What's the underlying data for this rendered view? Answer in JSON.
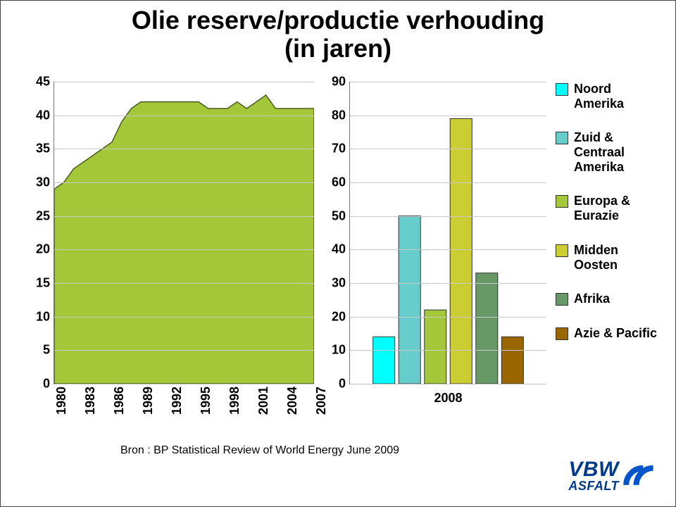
{
  "title_line1": "Olie reserve/productie verhouding",
  "title_line2": "(in jaren)",
  "source_text": "Bron : BP Statistical Review of World Energy June 2009",
  "logo_top": "VBW",
  "logo_bottom": "ASFALT",
  "background_color": "#ffffff",
  "area_chart": {
    "type": "area",
    "fill_color": "#a4c639",
    "stroke_color": "#4a5b1e",
    "ylim": [
      0,
      45
    ],
    "ytick_step": 5,
    "yticks": [
      0,
      5,
      10,
      15,
      20,
      25,
      30,
      35,
      40,
      45
    ],
    "xlim": [
      1980,
      2007
    ],
    "xticks": [
      1980,
      1983,
      1986,
      1989,
      1992,
      1995,
      1998,
      2001,
      2004,
      2007
    ],
    "tick_fontsize": 18,
    "grid_color": "#c8c8c8",
    "data": [
      {
        "x": 1980,
        "y": 29
      },
      {
        "x": 1981,
        "y": 30
      },
      {
        "x": 1982,
        "y": 32
      },
      {
        "x": 1983,
        "y": 33
      },
      {
        "x": 1984,
        "y": 34
      },
      {
        "x": 1985,
        "y": 35
      },
      {
        "x": 1986,
        "y": 36
      },
      {
        "x": 1987,
        "y": 39
      },
      {
        "x": 1988,
        "y": 41
      },
      {
        "x": 1989,
        "y": 42
      },
      {
        "x": 1990,
        "y": 42
      },
      {
        "x": 1991,
        "y": 42
      },
      {
        "x": 1992,
        "y": 42
      },
      {
        "x": 1993,
        "y": 42
      },
      {
        "x": 1994,
        "y": 42
      },
      {
        "x": 1995,
        "y": 42
      },
      {
        "x": 1996,
        "y": 41
      },
      {
        "x": 1997,
        "y": 41
      },
      {
        "x": 1998,
        "y": 41
      },
      {
        "x": 1999,
        "y": 42
      },
      {
        "x": 2000,
        "y": 41
      },
      {
        "x": 2001,
        "y": 42
      },
      {
        "x": 2002,
        "y": 43
      },
      {
        "x": 2003,
        "y": 41
      },
      {
        "x": 2004,
        "y": 41
      },
      {
        "x": 2005,
        "y": 41
      },
      {
        "x": 2006,
        "y": 41
      },
      {
        "x": 2007,
        "y": 41
      }
    ]
  },
  "bar_chart": {
    "type": "bar",
    "ylim": [
      0,
      90
    ],
    "ytick_step": 10,
    "yticks": [
      0,
      10,
      20,
      30,
      40,
      50,
      60,
      70,
      80,
      90
    ],
    "xlabel": "2008",
    "tick_fontsize": 18,
    "grid_color": "#c8c8c8",
    "bar_width": 0.85,
    "bars": [
      {
        "label": "Noord Amerika",
        "value": 14,
        "color": "#00ffff"
      },
      {
        "label": "Zuid & Centraal Amerika",
        "value": 50,
        "color": "#66cccc"
      },
      {
        "label": "Europa & Eurazie",
        "value": 22,
        "color": "#a4c639"
      },
      {
        "label": "Midden Oosten",
        "value": 79,
        "color": "#cccc33"
      },
      {
        "label": "Afrika",
        "value": 33,
        "color": "#669966"
      },
      {
        "label": "Azie & Pacific",
        "value": 14,
        "color": "#996600"
      }
    ]
  },
  "legend": {
    "fontsize": 18,
    "items": [
      {
        "label": "Noord Amerika",
        "color": "#00ffff"
      },
      {
        "label": "Zuid & Centraal Amerika",
        "color": "#66cccc"
      },
      {
        "label": "Europa & Eurazie",
        "color": "#a4c639"
      },
      {
        "label": "Midden Oosten",
        "color": "#cccc33"
      },
      {
        "label": "Afrika",
        "color": "#669966"
      },
      {
        "label": "Azie & Pacific",
        "color": "#996600"
      }
    ]
  }
}
